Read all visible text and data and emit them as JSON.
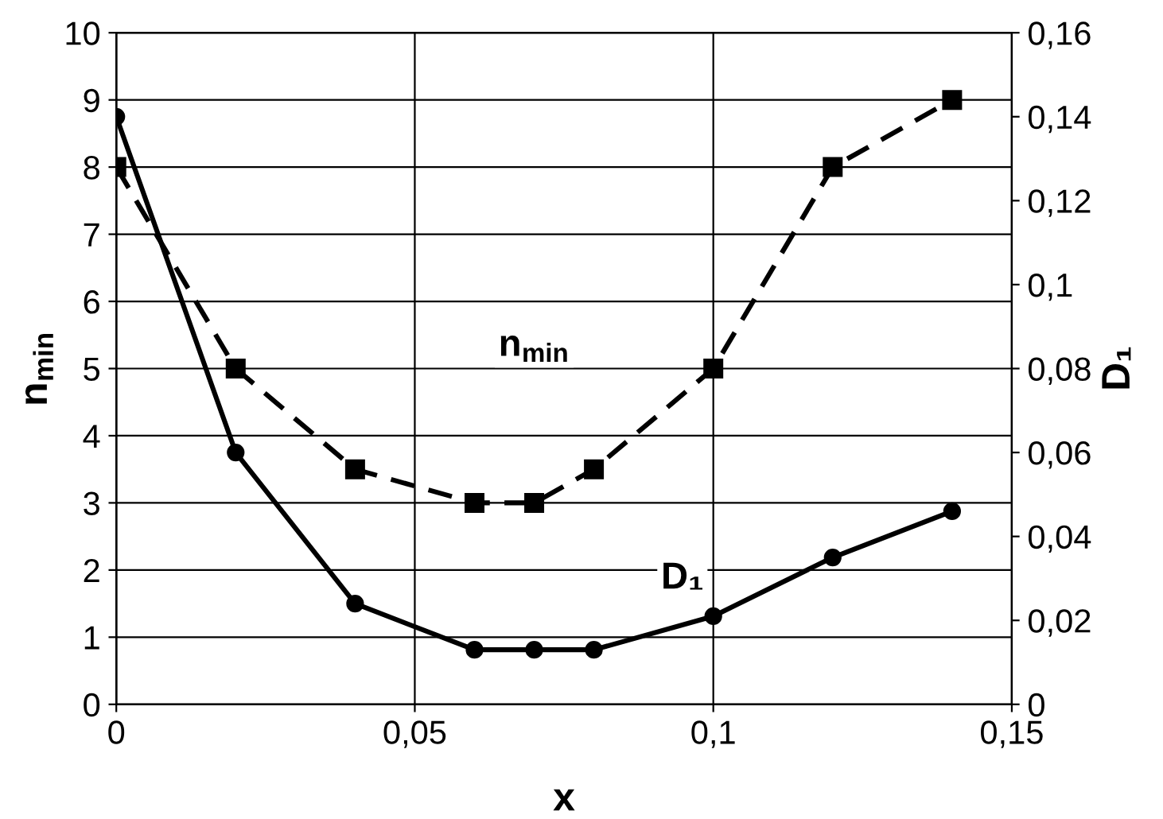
{
  "chart_data": {
    "type": "line",
    "xlabel": "x",
    "ylabel": "n$_{min}$",
    "y2label": "D₁",
    "x": [
      0,
      0.02,
      0.04,
      0.06,
      0.07,
      0.08,
      0.1,
      0.12,
      0.14
    ],
    "series": [
      {
        "name": "n$_{min}$",
        "color": "#000000",
        "marker": "square",
        "line_style": "dashed",
        "values": [
          8,
          5,
          3.5,
          3,
          3,
          3.5,
          5,
          8,
          9
        ]
      },
      {
        "name": "D₁",
        "color": "#000000",
        "marker": "circle",
        "line_style": "solid",
        "axis": "y2",
        "values": [
          0.14,
          0.06,
          0.024,
          0.013,
          0.013,
          0.013,
          0.021,
          0.035,
          0.046
        ]
      }
    ],
    "xlim": [
      0,
      0.15
    ],
    "xticks": [
      0,
      {
        "value": 0.05,
        "label": "0,05"
      },
      {
        "value": 0.1,
        "label": "0,1"
      },
      {
        "value": 0.15,
        "label": "0,15"
      }
    ],
    "ylim": [
      0,
      10
    ],
    "yticks": [
      0,
      1,
      2,
      3,
      4,
      5,
      6,
      7,
      8,
      9,
      10
    ],
    "y2lim": [
      0,
      0.16
    ],
    "y2ticks": [
      0,
      {
        "value": 0.02,
        "label": "0,02"
      },
      {
        "value": 0.04,
        "label": "0,04"
      },
      {
        "value": 0.06,
        "label": "0,06"
      },
      {
        "value": 0.08,
        "label": "0,08"
      },
      {
        "value": 0.1,
        "label": "0,1"
      },
      {
        "value": 0.12,
        "label": "0,12"
      },
      {
        "value": 0.14,
        "label": "0,14"
      },
      {
        "value": 0.16,
        "label": "0,16"
      }
    ],
    "grid": true
  }
}
